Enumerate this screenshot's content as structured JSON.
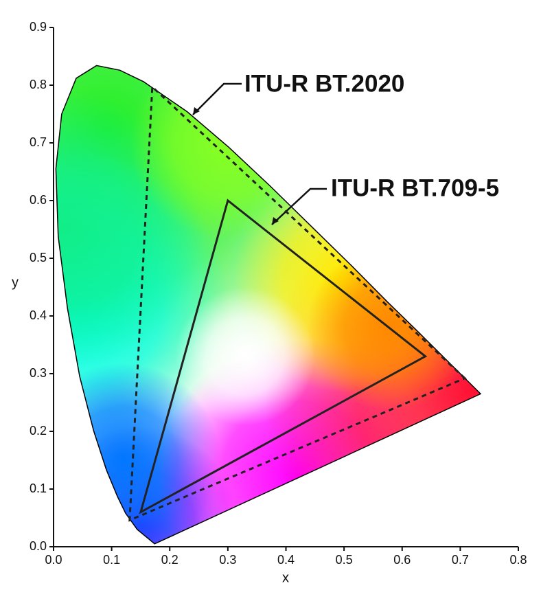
{
  "chart_data": {
    "type": "chromaticity",
    "x_label": "x",
    "y_label": "y",
    "xlim": [
      0,
      0.8
    ],
    "ylim": [
      0,
      0.9
    ],
    "xticks": [
      {
        "value": 0,
        "label": "0.0"
      },
      0.1,
      0.2,
      0.3,
      0.4,
      0.5,
      0.6,
      0.7,
      0.8
    ],
    "yticks": [
      {
        "value": 0,
        "label": "0.0"
      },
      0.1,
      0.2,
      0.3,
      0.4,
      0.5,
      0.6,
      0.7,
      0.8,
      0.9
    ],
    "locus": {
      "color": "#000000",
      "x": [
        0.174,
        0.144,
        0.124,
        0.11,
        0.091,
        0.069,
        0.045,
        0.024,
        0.008,
        0.004,
        0.014,
        0.039,
        0.074,
        0.114,
        0.155,
        0.23,
        0.302,
        0.373,
        0.444,
        0.513,
        0.575,
        0.627,
        0.692,
        0.735
      ],
      "values": [
        0.005,
        0.03,
        0.058,
        0.087,
        0.133,
        0.201,
        0.295,
        0.413,
        0.538,
        0.655,
        0.75,
        0.812,
        0.834,
        0.826,
        0.806,
        0.754,
        0.692,
        0.625,
        0.555,
        0.487,
        0.424,
        0.373,
        0.308,
        0.265
      ]
    },
    "series": [
      {
        "name": "ITU-R BT.2020",
        "color": "#222222",
        "dashed": true,
        "x": [
          0.708,
          0.17,
          0.131
        ],
        "values": [
          0.292,
          0.797,
          0.046
        ]
      },
      {
        "name": "ITU-R BT.709-5",
        "color": "#222222",
        "dashed": false,
        "x": [
          0.64,
          0.3,
          0.15
        ],
        "values": [
          0.33,
          0.6,
          0.06
        ]
      }
    ]
  }
}
